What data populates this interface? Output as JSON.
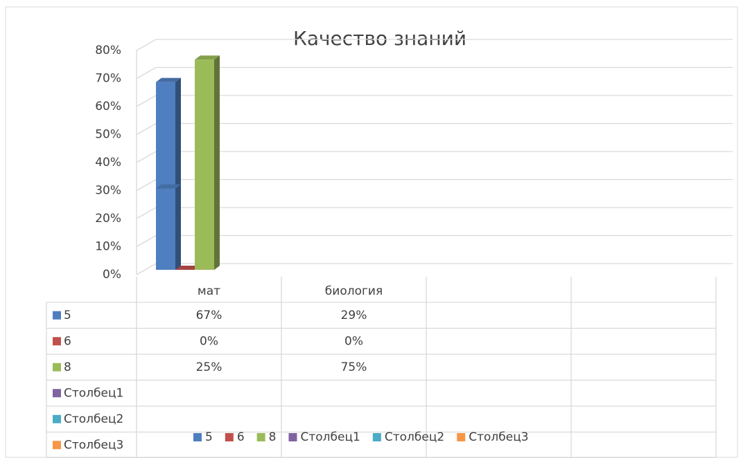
{
  "chart_data": {
    "type": "bar3d",
    "title": "Качество знаний",
    "categories": [
      "мат",
      "биология",
      null,
      null
    ],
    "series": [
      {
        "name": "5",
        "color": "#4f7fc0",
        "values": [
          67,
          29,
          null,
          null
        ],
        "value_labels": [
          "67%",
          "29%",
          null,
          null
        ]
      },
      {
        "name": "6",
        "color": "#c0504d",
        "values": [
          0,
          0,
          null,
          null
        ],
        "value_labels": [
          "0%",
          "0%",
          null,
          null
        ]
      },
      {
        "name": "8",
        "color": "#9bbb59",
        "values": [
          25,
          75,
          null,
          null
        ],
        "value_labels": [
          "25%",
          "75%",
          null,
          null
        ]
      },
      {
        "name": "Столбец1",
        "color": "#8064a2",
        "values": [
          null,
          null,
          null,
          null
        ]
      },
      {
        "name": "Столбец2",
        "color": "#4bacc6",
        "values": [
          null,
          null,
          null,
          null
        ]
      },
      {
        "name": "Столбец3",
        "color": "#f79646",
        "values": [
          null,
          null,
          null,
          null
        ]
      }
    ],
    "ylim": [
      0,
      80
    ],
    "yticks": [
      {
        "value": 0,
        "label": "0%"
      },
      {
        "value": 10,
        "label": "10%"
      },
      {
        "value": 20,
        "label": "20%"
      },
      {
        "value": 30,
        "label": "30%"
      },
      {
        "value": 40,
        "label": "40%"
      },
      {
        "value": 50,
        "label": "50%"
      },
      {
        "value": 60,
        "label": "60%"
      },
      {
        "value": 70,
        "label": "70%"
      },
      {
        "value": 80,
        "label": "80%"
      }
    ],
    "grid": true,
    "legend": "bottom",
    "data_table": true
  }
}
